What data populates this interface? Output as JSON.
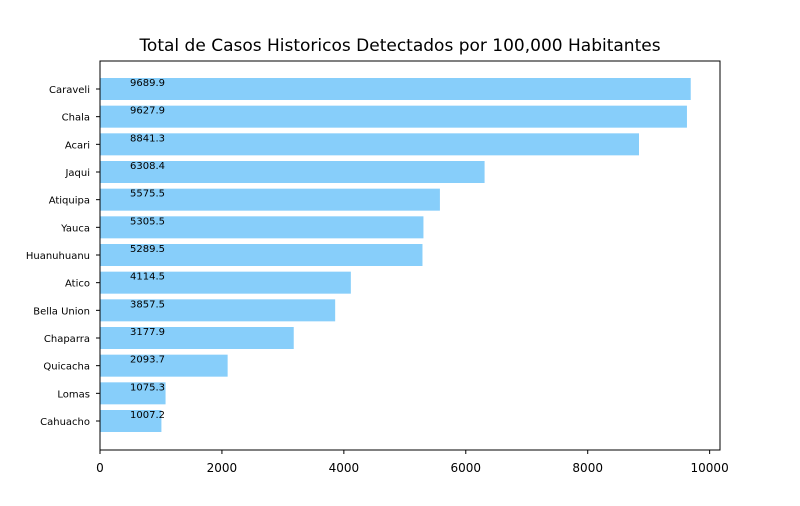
{
  "chart_data": {
    "type": "bar",
    "orientation": "horizontal",
    "title": "Total de Casos Historicos Detectados por 100,000 Habitantes",
    "xlabel": "",
    "ylabel": "",
    "xlim": [
      0,
      10170
    ],
    "grid": false,
    "bar_color": "#87cefa",
    "categories": [
      "Caraveli",
      "Chala",
      "Acari",
      "Jaqui",
      "Atiquipa",
      "Yauca",
      "Huanuhuanu",
      "Atico",
      "Bella Union",
      "Chaparra",
      "Quicacha",
      "Lomas",
      "Cahuacho"
    ],
    "values": [
      9689.9,
      9627.9,
      8841.3,
      6308.4,
      5575.5,
      5305.5,
      5289.5,
      4114.5,
      3857.5,
      3177.9,
      2093.7,
      1075.3,
      1007.2
    ],
    "value_labels": [
      "9689.9",
      "9627.9",
      "8841.3",
      "6308.4",
      "5575.5",
      "5305.5",
      "5289.5",
      "4114.5",
      "3857.5",
      "3177.9",
      "2093.7",
      "1075.3",
      "1007.2"
    ],
    "x_ticks": [
      0,
      2000,
      4000,
      6000,
      8000,
      10000
    ],
    "x_tick_labels": [
      "0",
      "2000",
      "4000",
      "6000",
      "8000",
      "10000"
    ]
  }
}
